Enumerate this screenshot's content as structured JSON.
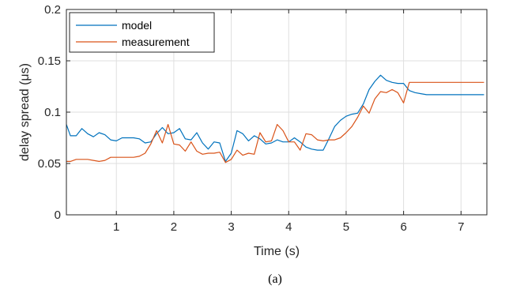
{
  "chart_data": {
    "type": "line",
    "title": "",
    "xlabel": "Time (s)",
    "ylabel": "delay spread (μs)",
    "xlim": [
      0.13,
      7.45
    ],
    "ylim": [
      0,
      0.2
    ],
    "xticks": [
      1,
      2,
      3,
      4,
      5,
      6,
      7
    ],
    "xtick_labels": [
      "1",
      "2",
      "3",
      "4",
      "5",
      "6",
      "7"
    ],
    "yticks": [
      0,
      0.05,
      0.1,
      0.15,
      0.2
    ],
    "ytick_labels": [
      "0",
      "0.05",
      "0.1",
      "0.15",
      "0.2"
    ],
    "grid": true,
    "legend_position": "top-left",
    "caption": "(a)",
    "series": [
      {
        "name": "model",
        "color": "#0072bd",
        "x": [
          0.13,
          0.2,
          0.3,
          0.4,
          0.5,
          0.6,
          0.7,
          0.8,
          0.9,
          1.0,
          1.1,
          1.2,
          1.3,
          1.4,
          1.5,
          1.6,
          1.7,
          1.8,
          1.9,
          2.0,
          2.1,
          2.2,
          2.3,
          2.4,
          2.5,
          2.6,
          2.7,
          2.8,
          2.9,
          3.0,
          3.1,
          3.2,
          3.3,
          3.4,
          3.5,
          3.6,
          3.7,
          3.8,
          3.9,
          4.0,
          4.1,
          4.2,
          4.3,
          4.4,
          4.5,
          4.6,
          4.7,
          4.8,
          4.9,
          5.0,
          5.1,
          5.2,
          5.3,
          5.4,
          5.5,
          5.6,
          5.7,
          5.8,
          5.9,
          6.0,
          6.1,
          6.2,
          6.3,
          6.4,
          6.5,
          6.6,
          6.7,
          6.8,
          6.9,
          7.0,
          7.1,
          7.2,
          7.3,
          7.4
        ],
        "values": [
          0.088,
          0.077,
          0.077,
          0.084,
          0.079,
          0.076,
          0.08,
          0.078,
          0.073,
          0.072,
          0.075,
          0.075,
          0.075,
          0.074,
          0.07,
          0.071,
          0.079,
          0.085,
          0.079,
          0.08,
          0.084,
          0.074,
          0.073,
          0.08,
          0.07,
          0.064,
          0.071,
          0.07,
          0.052,
          0.06,
          0.082,
          0.079,
          0.072,
          0.077,
          0.074,
          0.069,
          0.07,
          0.073,
          0.071,
          0.071,
          0.075,
          0.071,
          0.066,
          0.064,
          0.063,
          0.063,
          0.074,
          0.086,
          0.092,
          0.096,
          0.098,
          0.099,
          0.108,
          0.122,
          0.13,
          0.136,
          0.131,
          0.129,
          0.128,
          0.128,
          0.121,
          0.119,
          0.118,
          0.117,
          0.117,
          0.117,
          0.117,
          0.117,
          0.117,
          0.117,
          0.117,
          0.117,
          0.117,
          0.117
        ]
      },
      {
        "name": "measurement",
        "color": "#d95319",
        "x": [
          0.13,
          0.2,
          0.3,
          0.4,
          0.5,
          0.6,
          0.7,
          0.8,
          0.9,
          1.0,
          1.1,
          1.2,
          1.3,
          1.4,
          1.5,
          1.6,
          1.7,
          1.8,
          1.9,
          2.0,
          2.1,
          2.2,
          2.3,
          2.4,
          2.5,
          2.6,
          2.7,
          2.8,
          2.9,
          3.0,
          3.1,
          3.2,
          3.3,
          3.4,
          3.5,
          3.6,
          3.7,
          3.8,
          3.9,
          4.0,
          4.1,
          4.2,
          4.3,
          4.4,
          4.5,
          4.6,
          4.7,
          4.8,
          4.9,
          5.0,
          5.1,
          5.2,
          5.3,
          5.4,
          5.5,
          5.6,
          5.7,
          5.8,
          5.9,
          6.0,
          6.1,
          6.2,
          6.3,
          6.4,
          6.5,
          6.6,
          6.7,
          6.8,
          6.9,
          7.0,
          7.1,
          7.2,
          7.3,
          7.4
        ],
        "values": [
          0.052,
          0.052,
          0.054,
          0.054,
          0.054,
          0.053,
          0.052,
          0.053,
          0.056,
          0.056,
          0.056,
          0.056,
          0.056,
          0.057,
          0.06,
          0.069,
          0.082,
          0.07,
          0.088,
          0.069,
          0.068,
          0.062,
          0.071,
          0.062,
          0.059,
          0.06,
          0.06,
          0.061,
          0.051,
          0.054,
          0.063,
          0.058,
          0.06,
          0.059,
          0.08,
          0.071,
          0.072,
          0.088,
          0.082,
          0.071,
          0.071,
          0.063,
          0.079,
          0.078,
          0.073,
          0.072,
          0.073,
          0.073,
          0.075,
          0.08,
          0.086,
          0.095,
          0.106,
          0.099,
          0.113,
          0.12,
          0.119,
          0.122,
          0.119,
          0.109,
          0.129,
          0.129,
          0.129,
          0.129,
          0.129,
          0.129,
          0.129,
          0.129,
          0.129,
          0.129,
          0.129,
          0.129,
          0.129,
          0.129
        ]
      }
    ]
  }
}
